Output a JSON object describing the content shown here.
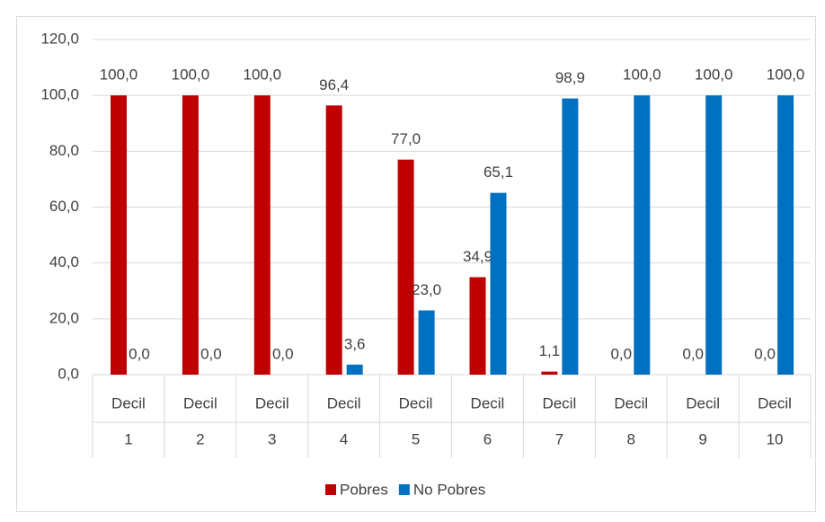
{
  "chart_data": {
    "type": "bar",
    "categories": [
      [
        "Decil",
        "1"
      ],
      [
        "Decil",
        "2"
      ],
      [
        "Decil",
        "3"
      ],
      [
        "Decil",
        "4"
      ],
      [
        "Decil",
        "5"
      ],
      [
        "Decil",
        "6"
      ],
      [
        "Decil",
        "7"
      ],
      [
        "Decil",
        "8"
      ],
      [
        "Decil",
        "9"
      ],
      [
        "Decil",
        "10"
      ]
    ],
    "series": [
      {
        "name": "Pobres",
        "color": "#c00000",
        "values": [
          100,
          100,
          100,
          96.4,
          77,
          34.9,
          1.1,
          0,
          0,
          0
        ],
        "value_labels": [
          "100,0",
          "100,0",
          "100,0",
          "96,4",
          "77,0",
          "34,9",
          "1,1",
          "0,0",
          "0,0",
          "0,0"
        ]
      },
      {
        "name": "No Pobres",
        "color": "#0070c0",
        "values": [
          0,
          0,
          0,
          3.6,
          23,
          65.1,
          98.9,
          100,
          100,
          100
        ],
        "value_labels": [
          "0,0",
          "0,0",
          "0,0",
          "3,6",
          "23,0",
          "65,1",
          "98,9",
          "100,0",
          "100,0",
          "100,0"
        ]
      }
    ],
    "ylim": [
      0,
      120
    ],
    "yticks": [
      {
        "value": 0,
        "label": "0,0"
      },
      {
        "value": 20,
        "label": "20,0"
      },
      {
        "value": 40,
        "label": "40,0"
      },
      {
        "value": 60,
        "label": "60,0"
      },
      {
        "value": 80,
        "label": "80,0"
      },
      {
        "value": 100,
        "label": "100,0"
      },
      {
        "value": 120,
        "label": "120,0"
      }
    ],
    "grid": true,
    "legend": "bottom"
  }
}
